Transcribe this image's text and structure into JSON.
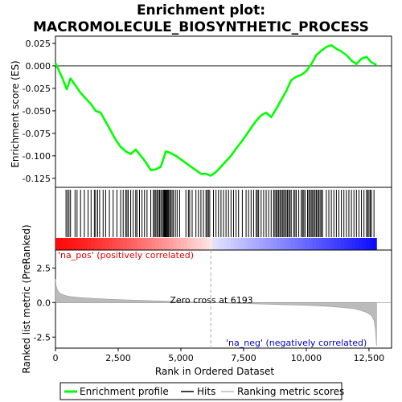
{
  "chart_data": {
    "type": "line",
    "title_line1": "Enrichment plot:",
    "title_line2": "MACROMOLECULE_BIOSYNTHETIC_PROCESS",
    "es_panel": {
      "ylabel": "Enrichment score (ES)",
      "ylim": [
        -0.135,
        0.033
      ],
      "yticks": [
        0.025,
        0.0,
        -0.025,
        -0.05,
        -0.075,
        -0.1,
        -0.125
      ],
      "ytick_labels": [
        "0.025",
        "0.000",
        "-0.025",
        "-0.050",
        "-0.075",
        "-0.100",
        "-0.125"
      ],
      "series": [
        {
          "name": "Enrichment profile",
          "color": "#00ff00",
          "x": [
            0,
            250,
            450,
            600,
            800,
            1000,
            1200,
            1400,
            1600,
            1800,
            2000,
            2200,
            2400,
            2600,
            2800,
            3000,
            3200,
            3400,
            3600,
            3800,
            4000,
            4200,
            4400,
            4600,
            4800,
            5000,
            5200,
            5400,
            5600,
            5800,
            6000,
            6193,
            6400,
            6600,
            6800,
            7000,
            7200,
            7400,
            7600,
            7800,
            8000,
            8200,
            8400,
            8600,
            8800,
            9000,
            9200,
            9400,
            9600,
            9800,
            10000,
            10200,
            10400,
            10600,
            10800,
            11000,
            11200,
            11400,
            11600,
            11800,
            12000,
            12200,
            12400,
            12600,
            12800
          ],
          "y": [
            0.003,
            -0.012,
            -0.026,
            -0.014,
            -0.022,
            -0.03,
            -0.036,
            -0.042,
            -0.05,
            -0.052,
            -0.062,
            -0.072,
            -0.082,
            -0.09,
            -0.095,
            -0.098,
            -0.093,
            -0.1,
            -0.107,
            -0.116,
            -0.115,
            -0.112,
            -0.095,
            -0.097,
            -0.1,
            -0.104,
            -0.108,
            -0.112,
            -0.116,
            -0.12,
            -0.12,
            -0.122,
            -0.118,
            -0.112,
            -0.106,
            -0.1,
            -0.092,
            -0.085,
            -0.077,
            -0.069,
            -0.061,
            -0.055,
            -0.052,
            -0.057,
            -0.048,
            -0.038,
            -0.028,
            -0.016,
            -0.012,
            -0.01,
            -0.006,
            0.002,
            0.012,
            0.017,
            0.021,
            0.023,
            0.019,
            0.016,
            0.012,
            0.006,
            0.002,
            0.008,
            0.01,
            0.004,
            0.001
          ]
        }
      ]
    },
    "hits_panel": {
      "name": "Hits",
      "hit_ranks": [
        420,
        480,
        540,
        600,
        780,
        860,
        1000,
        1150,
        1300,
        1420,
        1550,
        1600,
        1680,
        1760,
        1900,
        2000,
        2150,
        2300,
        2450,
        2600,
        2700,
        2800,
        2850,
        2900,
        3000,
        3100,
        3200,
        3250,
        3350,
        3450,
        3550,
        3650,
        3800,
        3900,
        3950,
        4000,
        4050,
        4100,
        4150,
        4200,
        4250,
        4300,
        4330,
        4360,
        4390,
        4420,
        4450,
        4480,
        4510,
        4550,
        4600,
        4650,
        4700,
        4780,
        4850,
        4950,
        5200,
        5300,
        5350,
        5450,
        5600,
        5700,
        5800,
        5900,
        6000,
        6050,
        6100,
        6150,
        6300,
        6400,
        6500,
        6600,
        6700,
        6800,
        6900,
        7000,
        7100,
        7200,
        7300,
        7450,
        7600,
        7700,
        7800,
        7900,
        8000,
        8050,
        8100,
        8200,
        8300,
        8400,
        8500,
        8600,
        8700,
        8750,
        8800,
        8850,
        8900,
        8950,
        9000,
        9050,
        9100,
        9150,
        9200,
        9250,
        9300,
        9350,
        9400,
        9500,
        9550,
        9600,
        9700,
        9800,
        9850,
        9900,
        9950,
        10050,
        10100,
        10150,
        10200,
        10250,
        10300,
        10350,
        10400,
        10450,
        10500,
        10550,
        10600,
        10650,
        10800,
        10900,
        11000,
        11100,
        11200,
        11300,
        11400,
        11500,
        11600,
        11700,
        11800,
        11900,
        12000,
        12100,
        12200,
        12300,
        12400,
        12450,
        12500,
        12550,
        12600,
        12700
      ]
    },
    "heatmap_bar": {
      "positive_color": "#ff0000",
      "negative_color": "#0000ff",
      "positive_label": "'na_pos' (positively correlated)",
      "negative_label": "'na_neg' (negatively correlated)"
    },
    "metric_panel": {
      "ylabel": "Ranked list metric (PreRanked)",
      "ylim": [
        -3.3,
        3.8
      ],
      "yticks": [
        2.5,
        0.0,
        -2.5
      ],
      "ytick_labels": [
        "2.5",
        "0.0",
        "-2.5"
      ],
      "zero_cross_rank": 6193,
      "zero_cross_label": "Zero cross at 6193",
      "series_name": "Ranking metric scores",
      "x": [
        0,
        30,
        80,
        150,
        250,
        400,
        600,
        900,
        1300,
        1800,
        2500,
        3500,
        4500,
        5500,
        6193,
        7000,
        8000,
        9000,
        10000,
        10800,
        11400,
        11900,
        12200,
        12450,
        12600,
        12700,
        12760,
        12800
      ],
      "y": [
        1.7,
        1.2,
        0.9,
        0.72,
        0.6,
        0.5,
        0.43,
        0.37,
        0.32,
        0.27,
        0.21,
        0.15,
        0.09,
        0.04,
        0.0,
        -0.05,
        -0.1,
        -0.15,
        -0.2,
        -0.27,
        -0.35,
        -0.45,
        -0.58,
        -0.75,
        -0.95,
        -1.3,
        -2.0,
        -3.15
      ]
    },
    "xaxis": {
      "xlabel": "Rank in Ordered Dataset",
      "xlim": [
        0,
        13400
      ],
      "xticks": [
        0,
        2500,
        5000,
        7500,
        10000,
        12500
      ],
      "xtick_labels": [
        "0",
        "2,500",
        "5,000",
        "7,500",
        "10,000",
        "12,500"
      ],
      "n_ranks": 12800
    },
    "legend": {
      "placement": "bottom",
      "items": [
        "Enrichment profile",
        "Hits",
        "Ranking metric scores"
      ]
    }
  }
}
